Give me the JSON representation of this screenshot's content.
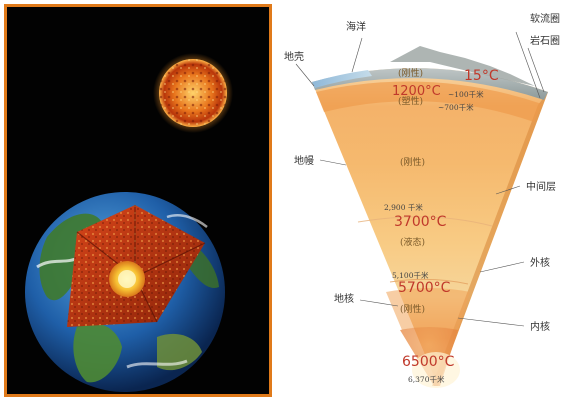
{
  "labels": {
    "ocean": "海洋",
    "asthenosphere": "软流圈",
    "lithosphere": "岩石圈",
    "crust": "地壳",
    "mantle": "地幔",
    "middle_layer": "中间层",
    "core": "地核",
    "outer_core": "外核",
    "inner_core": "内核"
  },
  "states": {
    "rigid1": "(刚性)",
    "plastic": "(塑性)",
    "rigid2": "(刚性)",
    "liquid": "(液态)",
    "rigid3": "(刚性)"
  },
  "temperatures": {
    "surface": "15°C",
    "t1200": "1200°C",
    "t3700": "3700°C",
    "t5700": "5700°C",
    "t6500": "6500°C"
  },
  "depths": {
    "d100": "~100千米",
    "d700": "~700千米",
    "d2900": "2,900 千米",
    "d5100": "5,100千米",
    "d6370": "6,370千米"
  },
  "colors": {
    "frame": "#e07a1a",
    "temp_red": "#c0392b"
  }
}
